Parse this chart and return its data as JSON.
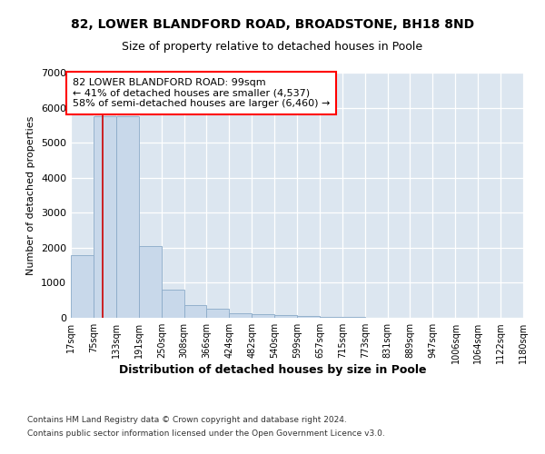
{
  "title1": "82, LOWER BLANDFORD ROAD, BROADSTONE, BH18 8ND",
  "title2": "Size of property relative to detached houses in Poole",
  "xlabel": "Distribution of detached houses by size in Poole",
  "ylabel": "Number of detached properties",
  "footer1": "Contains HM Land Registry data © Crown copyright and database right 2024.",
  "footer2": "Contains public sector information licensed under the Open Government Licence v3.0.",
  "annotation_line1": "82 LOWER BLANDFORD ROAD: 99sqm",
  "annotation_line2": "← 41% of detached houses are smaller (4,537)",
  "annotation_line3": "58% of semi-detached houses are larger (6,460) →",
  "vline_color": "#cc0000",
  "vline_x": 99,
  "bins": [
    17,
    75,
    133,
    191,
    250,
    308,
    366,
    424,
    482,
    540,
    599,
    657,
    715,
    773,
    831,
    889,
    947,
    1006,
    1064,
    1122,
    1180
  ],
  "bin_labels": [
    "17sqm",
    "75sqm",
    "133sqm",
    "191sqm",
    "250sqm",
    "308sqm",
    "366sqm",
    "424sqm",
    "482sqm",
    "540sqm",
    "599sqm",
    "657sqm",
    "715sqm",
    "773sqm",
    "831sqm",
    "889sqm",
    "947sqm",
    "1006sqm",
    "1064sqm",
    "1122sqm",
    "1180sqm"
  ],
  "values": [
    1780,
    5750,
    5750,
    2050,
    800,
    360,
    250,
    130,
    100,
    65,
    50,
    35,
    25,
    5,
    3,
    2,
    1,
    1,
    0,
    0,
    0
  ],
  "ylim": [
    0,
    7000
  ],
  "yticks": [
    0,
    1000,
    2000,
    3000,
    4000,
    5000,
    6000,
    7000
  ],
  "bar_color": "#c8d8ea",
  "bar_edge_color": "#8aaac8",
  "bg_color": "#ffffff",
  "plot_bg_color": "#dce6f0"
}
